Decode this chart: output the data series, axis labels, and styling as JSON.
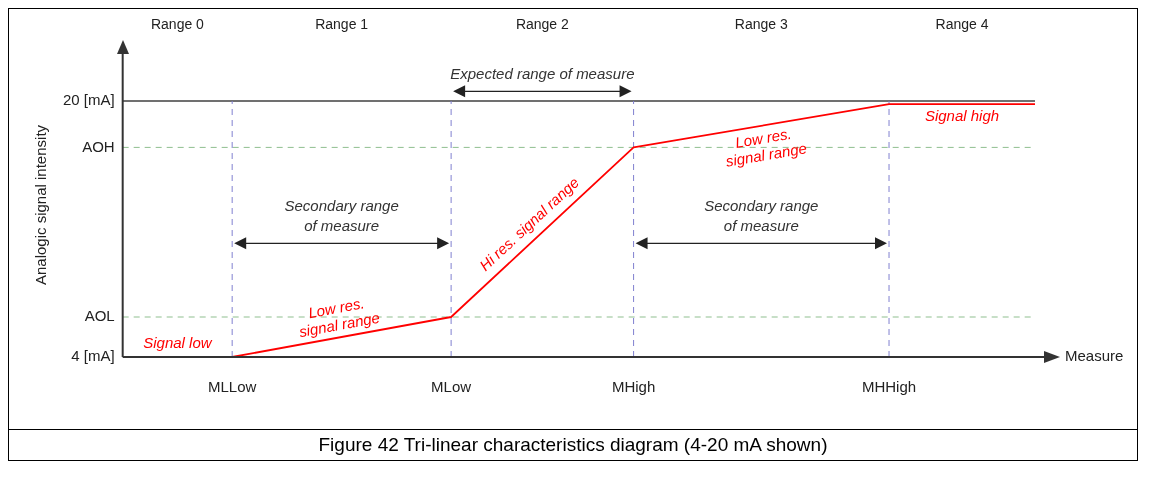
{
  "chart_data": {
    "type": "line",
    "title": "Figure 42  Tri-linear characteristics diagram (4-20 mA shown)",
    "xlabel": "Measure",
    "ylabel": "Analogic signal intensity",
    "categories": [
      null,
      null,
      null,
      "MLLow",
      null,
      null,
      null,
      null,
      null,
      "MLow",
      null,
      null,
      null,
      null,
      "MHigh",
      null,
      null,
      null,
      null,
      null,
      null,
      "MHHigh",
      null,
      null,
      null,
      null
    ],
    "series": [
      {
        "color": "#ff0000",
        "values": [
          4,
          null,
          null,
          4,
          null,
          null,
          null,
          null,
          null,
          6.5,
          null,
          null,
          null,
          null,
          17.1,
          null,
          null,
          null,
          null,
          null,
          null,
          19.8,
          null,
          null,
          null,
          19.8
        ]
      }
    ],
    "ylim": [
      4,
      23
    ],
    "yticks": [
      {
        "value": 4,
        "label": "4 [mA]"
      },
      {
        "value": 6.5,
        "label": "AOL"
      },
      {
        "value": 17.1,
        "label": "AOH"
      },
      {
        "value": 20,
        "label": "20 [mA]"
      }
    ],
    "ref_lines": [
      {
        "axis": "y",
        "value": 20,
        "color": "#707070",
        "line_style": "solid"
      },
      {
        "axis": "y",
        "value": 17.1,
        "color": "#8fbf8f",
        "line_style": "dashed"
      },
      {
        "axis": "y",
        "value": 6.5,
        "color": "#8fbf8f",
        "line_style": "dashed"
      },
      {
        "axis": "x",
        "value": "MLLow",
        "color": "#8080d0",
        "line_style": "dashed"
      },
      {
        "axis": "x",
        "value": "MLow",
        "color": "#8080d0",
        "line_style": "dashed"
      },
      {
        "axis": "x",
        "value": "MHigh",
        "color": "#8080d0",
        "line_style": "dashed"
      },
      {
        "axis": "x",
        "value": "MHHigh",
        "color": "#8080d0",
        "line_style": "dashed"
      }
    ],
    "annotations": [
      "Range 0",
      "Range 1",
      "Range 2",
      "Range 3",
      "Range 4",
      "Expected range of measure",
      "Secondary range\nof measure",
      "Secondary range\nof measure",
      "Signal low",
      "Low res.\nsignal range",
      "Hi res. signal range",
      "Low res.\nsignal range",
      "Signal high"
    ],
    "grid": false,
    "legend": false,
    "marker": "none",
    "line_style": "solid"
  }
}
